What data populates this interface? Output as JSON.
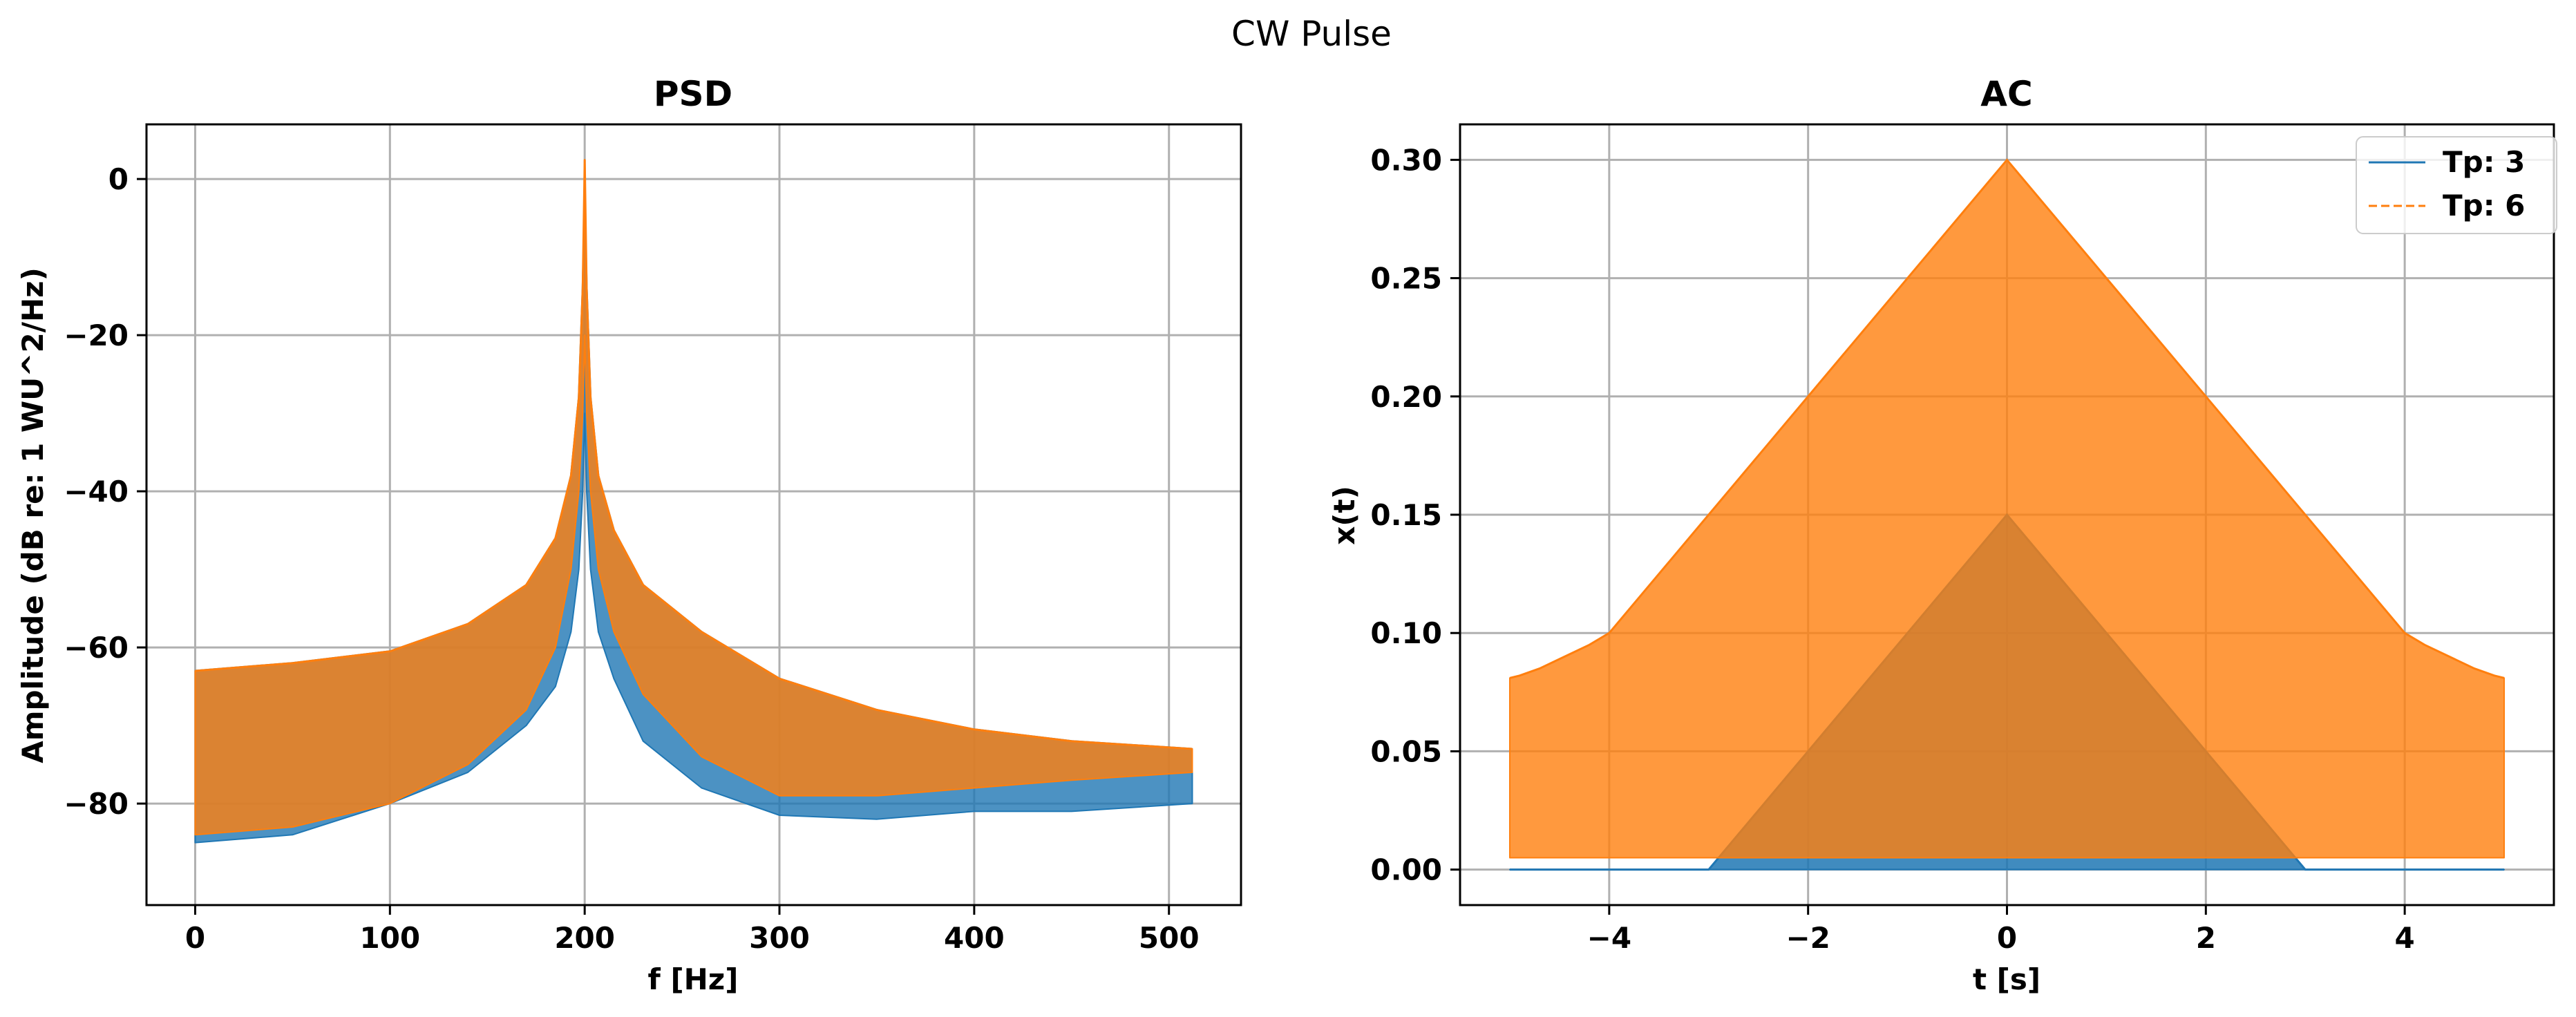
{
  "figure": {
    "suptitle": "CW Pulse"
  },
  "colors": {
    "series_1": "#1f77b4",
    "series_2": "#ff7f0e",
    "grid": "#b0b0b0",
    "axes": "#000000"
  },
  "chart_data": [
    {
      "type": "area",
      "title": "PSD",
      "xlabel": "f [Hz]",
      "ylabel": "Amplitude (dB re: 1 WU^2/Hz)",
      "xlim": [
        -25,
        537
      ],
      "ylim": [
        -93,
        7
      ],
      "xticks": [
        0,
        100,
        200,
        300,
        400,
        500
      ],
      "xtick_labels": [
        "0",
        "100",
        "200",
        "300",
        "400",
        "500"
      ],
      "yticks": [
        0,
        -20,
        -40,
        -60,
        -80
      ],
      "ytick_labels": [
        "0",
        "−20",
        "−40",
        "−60",
        "−80"
      ],
      "grid": true,
      "legend": false,
      "series": [
        {
          "color": "#1f77b4",
          "style": "solid",
          "upper": {
            "x": [
              0,
              50,
              100,
              140,
              170,
              185,
              193,
              197,
              199,
              200,
              201,
              203,
              207,
              215,
              230,
              260,
              300,
              350,
              400,
              450,
              512
            ],
            "y": [
              -63,
              -62,
              -60.5,
              -57,
              -52,
              -46,
              -38,
              -28,
              -14,
              -3,
              -14,
              -28,
              -38,
              -45,
              -52,
              -58,
              -64,
              -68,
              -70.5,
              -72,
              -73
            ]
          },
          "lower": {
            "x": [
              0,
              50,
              100,
              140,
              170,
              185,
              193,
              197,
              199,
              200,
              201,
              203,
              207,
              215,
              230,
              260,
              300,
              350,
              400,
              450,
              512
            ],
            "y": [
              -85,
              -84,
              -80,
              -76,
              -70,
              -65,
              -58,
              -50,
              -40,
              -30,
              -40,
              -50,
              -58,
              -64,
              -72,
              -78,
              -81.5,
              -82,
              -81,
              -81,
              -80
            ]
          }
        },
        {
          "color": "#ff7f0e",
          "style": "solid",
          "upper": {
            "x": [
              0,
              50,
              100,
              140,
              170,
              185,
              193,
              197,
              199,
              200,
              201,
              203,
              207,
              215,
              230,
              260,
              300,
              350,
              400,
              450,
              512
            ],
            "y": [
              -63,
              -62,
              -60.5,
              -57,
              -52,
              -46,
              -38,
              -28,
              -14,
              2.5,
              -14,
              -28,
              -38,
              -45,
              -52,
              -58,
              -64,
              -68,
              -70.5,
              -72,
              -73
            ]
          },
          "lower": {
            "x": [
              0,
              50,
              100,
              140,
              170,
              185,
              193,
              197,
              199,
              200,
              201,
              203,
              207,
              215,
              230,
              260,
              300,
              350,
              400,
              450,
              512
            ],
            "y": [
              -84,
              -83,
              -80,
              -75,
              -68,
              -60,
              -50,
              -40,
              -30,
              -20,
              -30,
              -40,
              -50,
              -58,
              -66,
              -74,
              -79,
              -79,
              -78,
              -77,
              -76
            ]
          }
        }
      ]
    },
    {
      "type": "area",
      "title": "AC",
      "xlabel": "t [s]",
      "ylabel": "x(t)",
      "xlim": [
        -5.5,
        5.5
      ],
      "ylim": [
        -0.015,
        0.315
      ],
      "xticks": [
        -4,
        -2,
        0,
        2,
        4
      ],
      "xtick_labels": [
        "−4",
        "−2",
        "0",
        "2",
        "4"
      ],
      "yticks": [
        0.0,
        0.05,
        0.1,
        0.15,
        0.2,
        0.25,
        0.3
      ],
      "ytick_labels": [
        "0.00",
        "0.05",
        "0.10",
        "0.15",
        "0.20",
        "0.25",
        "0.30"
      ],
      "grid": true,
      "legend": {
        "placement": "top-right"
      },
      "series": [
        {
          "name": "Tp: 3",
          "color": "#1f77b4",
          "style": "solid",
          "upper": {
            "x": [
              -5,
              -3,
              0,
              3,
              5
            ],
            "y": [
              0,
              0,
              0.15,
              0,
              0
            ]
          },
          "lower": {
            "x": [
              -5,
              5
            ],
            "y": [
              0,
              0
            ]
          }
        },
        {
          "name": "Tp: 6",
          "color": "#ff7f0e",
          "style": "dashed",
          "upper": {
            "x": [
              -5,
              -4.9,
              -4.7,
              -4.5,
              -4.2,
              -4,
              0,
              4,
              4.2,
              4.5,
              4.7,
              4.9,
              5
            ],
            "y": [
              0.081,
              0.082,
              0.085,
              0.089,
              0.095,
              0.1,
              0.3,
              0.1,
              0.095,
              0.089,
              0.085,
              0.082,
              0.081
            ]
          },
          "lower": {
            "x": [
              -5,
              5
            ],
            "y": [
              0.005,
              0.005
            ]
          }
        }
      ]
    }
  ]
}
